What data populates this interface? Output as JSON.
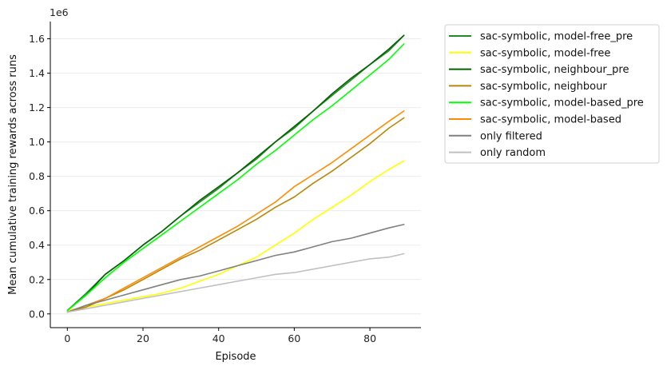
{
  "chart_data": {
    "type": "line",
    "title": "",
    "xlabel": "Episode",
    "ylabel": "Mean cumulative training rewards across runs",
    "y_offset_label": "1e6",
    "xlim": [
      -4.5,
      93.5
    ],
    "ylim": [
      -0.08,
      1.7
    ],
    "xticks": [
      0,
      20,
      40,
      60,
      80
    ],
    "yticks": [
      0.0,
      0.2,
      0.4,
      0.6,
      0.8,
      1.0,
      1.2,
      1.4,
      1.6
    ],
    "ytick_labels": [
      "0.0",
      "0.2",
      "0.4",
      "0.6",
      "0.8",
      "1.0",
      "1.2",
      "1.4",
      "1.6"
    ],
    "grid": "horizontal",
    "legend_position": "outside-right",
    "x": [
      0,
      5,
      10,
      15,
      20,
      25,
      30,
      35,
      40,
      45,
      50,
      55,
      60,
      65,
      70,
      75,
      80,
      85,
      89
    ],
    "series": [
      {
        "name": "sac-symbolic, model-free_pre",
        "color": "#228b22",
        "values": [
          0.02,
          0.12,
          0.23,
          0.31,
          0.4,
          0.48,
          0.57,
          0.65,
          0.73,
          0.82,
          0.9,
          1.0,
          1.08,
          1.18,
          1.27,
          1.36,
          1.45,
          1.53,
          1.62
        ]
      },
      {
        "name": "sac-symbolic, model-free",
        "color": "#ffff00",
        "values": [
          0.02,
          0.04,
          0.06,
          0.08,
          0.1,
          0.12,
          0.15,
          0.19,
          0.23,
          0.28,
          0.33,
          0.4,
          0.47,
          0.55,
          0.62,
          0.69,
          0.77,
          0.84,
          0.89
        ]
      },
      {
        "name": "sac-symbolic, neighbour_pre",
        "color": "#006400",
        "values": [
          0.02,
          0.11,
          0.23,
          0.31,
          0.4,
          0.48,
          0.57,
          0.66,
          0.74,
          0.82,
          0.91,
          1.0,
          1.09,
          1.18,
          1.28,
          1.37,
          1.45,
          1.54,
          1.62
        ]
      },
      {
        "name": "sac-symbolic, neighbour",
        "color": "#b8860b",
        "values": [
          0.01,
          0.04,
          0.09,
          0.14,
          0.2,
          0.26,
          0.32,
          0.37,
          0.43,
          0.49,
          0.55,
          0.62,
          0.68,
          0.76,
          0.83,
          0.91,
          0.99,
          1.08,
          1.14
        ]
      },
      {
        "name": "sac-symbolic, model-based_pre",
        "color": "#00ff00",
        "values": [
          0.02,
          0.11,
          0.21,
          0.3,
          0.38,
          0.46,
          0.54,
          0.62,
          0.7,
          0.78,
          0.87,
          0.95,
          1.04,
          1.13,
          1.21,
          1.3,
          1.39,
          1.48,
          1.57
        ]
      },
      {
        "name": "sac-symbolic, model-based",
        "color": "#ff8c00",
        "values": [
          0.01,
          0.05,
          0.09,
          0.15,
          0.21,
          0.27,
          0.33,
          0.39,
          0.45,
          0.51,
          0.58,
          0.65,
          0.74,
          0.81,
          0.88,
          0.96,
          1.04,
          1.12,
          1.18
        ]
      },
      {
        "name": "only filtered",
        "color": "#808080",
        "values": [
          0.01,
          0.05,
          0.08,
          0.11,
          0.14,
          0.17,
          0.2,
          0.22,
          0.25,
          0.28,
          0.31,
          0.34,
          0.36,
          0.39,
          0.42,
          0.44,
          0.47,
          0.5,
          0.52
        ]
      },
      {
        "name": "only random",
        "color": "#c0c0c0",
        "values": [
          0.01,
          0.03,
          0.05,
          0.07,
          0.09,
          0.11,
          0.13,
          0.15,
          0.17,
          0.19,
          0.21,
          0.23,
          0.24,
          0.26,
          0.28,
          0.3,
          0.32,
          0.33,
          0.35
        ]
      }
    ]
  }
}
